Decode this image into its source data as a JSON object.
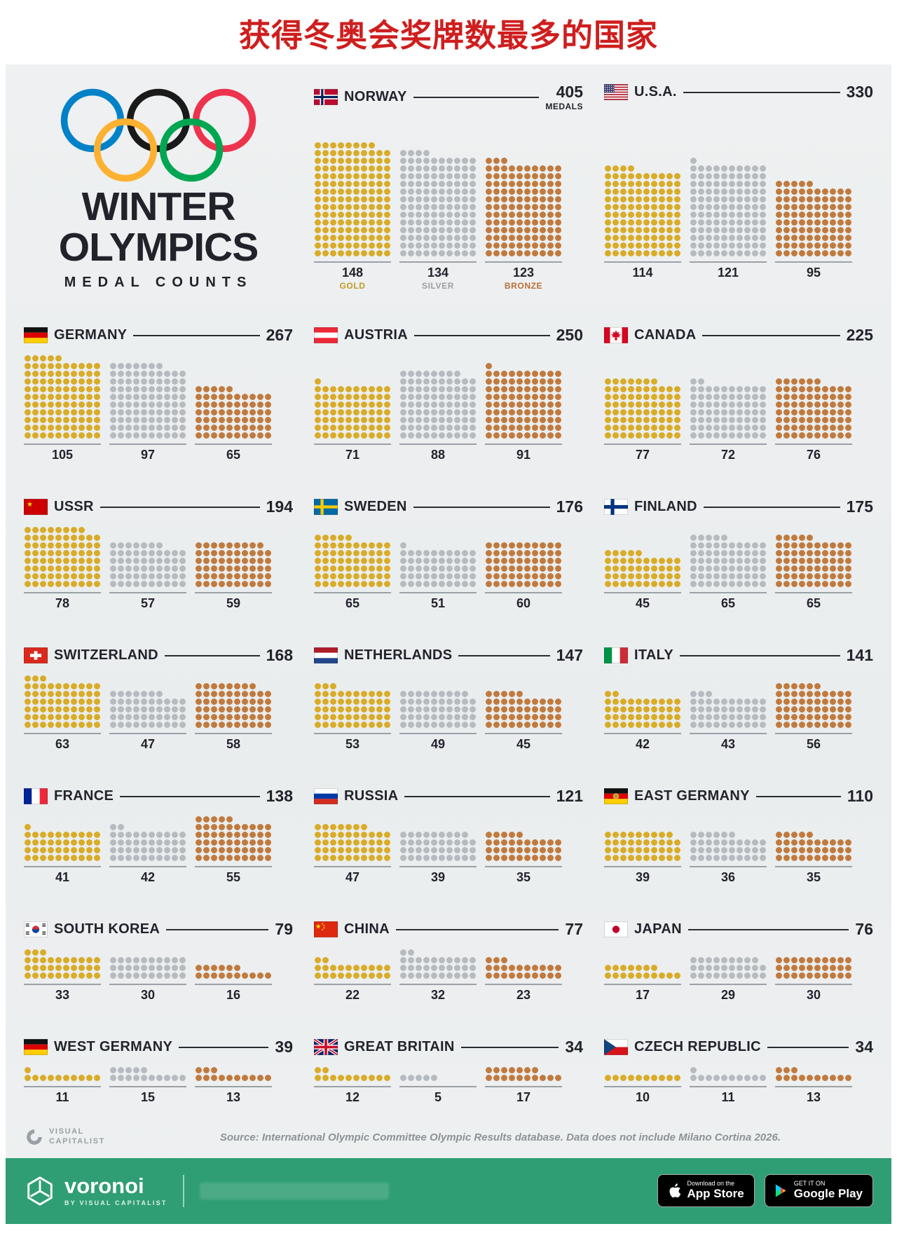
{
  "page_title": "获得冬奥会奖牌数最多的国家",
  "infographic": {
    "title_line1": "WINTER",
    "title_line2": "OLYMPICS",
    "subtitle": "MEDAL COUNTS",
    "medals_label": "MEDALS",
    "legend": {
      "gold": "GOLD",
      "silver": "SILVER",
      "bronze": "BRONZE"
    }
  },
  "colors": {
    "gold": "#d9ac28",
    "silver": "#b6bbbf",
    "bronze": "#c17a3e",
    "green_bar": "#2f9e74",
    "title_red": "#cf1e1e"
  },
  "chart_data": {
    "type": "pictogram-grid",
    "title": "Winter Olympics Medal Counts",
    "unit": "1 dot = 1 medal",
    "columns_per_group": 10,
    "series_labels": [
      "GOLD",
      "SILVER",
      "BRONZE"
    ],
    "countries": [
      {
        "id": "norway",
        "name": "NORWAY",
        "total": 405,
        "gold": 148,
        "silver": 134,
        "bronze": 123,
        "show_labels": true
      },
      {
        "id": "usa",
        "name": "U.S.A.",
        "total": 330,
        "gold": 114,
        "silver": 121,
        "bronze": 95,
        "label_spacer": true
      },
      {
        "id": "germany",
        "name": "GERMANY",
        "total": 267,
        "gold": 105,
        "silver": 97,
        "bronze": 65
      },
      {
        "id": "austria",
        "name": "AUSTRIA",
        "total": 250,
        "gold": 71,
        "silver": 88,
        "bronze": 91
      },
      {
        "id": "canada",
        "name": "CANADA",
        "total": 225,
        "gold": 77,
        "silver": 72,
        "bronze": 76
      },
      {
        "id": "ussr",
        "name": "USSR",
        "total": 194,
        "gold": 78,
        "silver": 57,
        "bronze": 59
      },
      {
        "id": "sweden",
        "name": "SWEDEN",
        "total": 176,
        "gold": 65,
        "silver": 51,
        "bronze": 60
      },
      {
        "id": "finland",
        "name": "FINLAND",
        "total": 175,
        "gold": 45,
        "silver": 65,
        "bronze": 65
      },
      {
        "id": "switzerland",
        "name": "SWITZERLAND",
        "total": 168,
        "gold": 63,
        "silver": 47,
        "bronze": 58
      },
      {
        "id": "netherlands",
        "name": "NETHERLANDS",
        "total": 147,
        "gold": 53,
        "silver": 49,
        "bronze": 45
      },
      {
        "id": "italy",
        "name": "ITALY",
        "total": 141,
        "gold": 42,
        "silver": 43,
        "bronze": 56
      },
      {
        "id": "france",
        "name": "FRANCE",
        "total": 138,
        "gold": 41,
        "silver": 42,
        "bronze": 55
      },
      {
        "id": "russia",
        "name": "RUSSIA",
        "total": 121,
        "gold": 47,
        "silver": 39,
        "bronze": 35
      },
      {
        "id": "east_germany",
        "name": "EAST GERMANY",
        "total": 110,
        "gold": 39,
        "silver": 36,
        "bronze": 35
      },
      {
        "id": "south_korea",
        "name": "SOUTH KOREA",
        "total": 79,
        "gold": 33,
        "silver": 30,
        "bronze": 16
      },
      {
        "id": "china",
        "name": "CHINA",
        "total": 77,
        "gold": 22,
        "silver": 32,
        "bronze": 23
      },
      {
        "id": "japan",
        "name": "JAPAN",
        "total": 76,
        "gold": 17,
        "silver": 29,
        "bronze": 30
      },
      {
        "id": "west_germany",
        "name": "WEST GERMANY",
        "total": 39,
        "gold": 11,
        "silver": 15,
        "bronze": 13
      },
      {
        "id": "great_britain",
        "name": "GREAT BRITAIN",
        "total": 34,
        "gold": 12,
        "silver": 5,
        "bronze": 17
      },
      {
        "id": "czech",
        "name": "CZECH REPUBLIC",
        "total": 34,
        "gold": 10,
        "silver": 11,
        "bronze": 13
      }
    ]
  },
  "footer": {
    "source": "Source: International Olympic Committee Olympic Results database. Data does not include Milano Cortina 2026.",
    "vc_logo_line1": "VISUAL",
    "vc_logo_line2": "CAPITALIST",
    "brand": "voronoi",
    "brand_sub": "BY VISUAL CAPITALIST",
    "appstore_top": "Download on the",
    "appstore_bottom": "App Store",
    "gplay_top": "GET IT ON",
    "gplay_bottom": "Google Play"
  }
}
